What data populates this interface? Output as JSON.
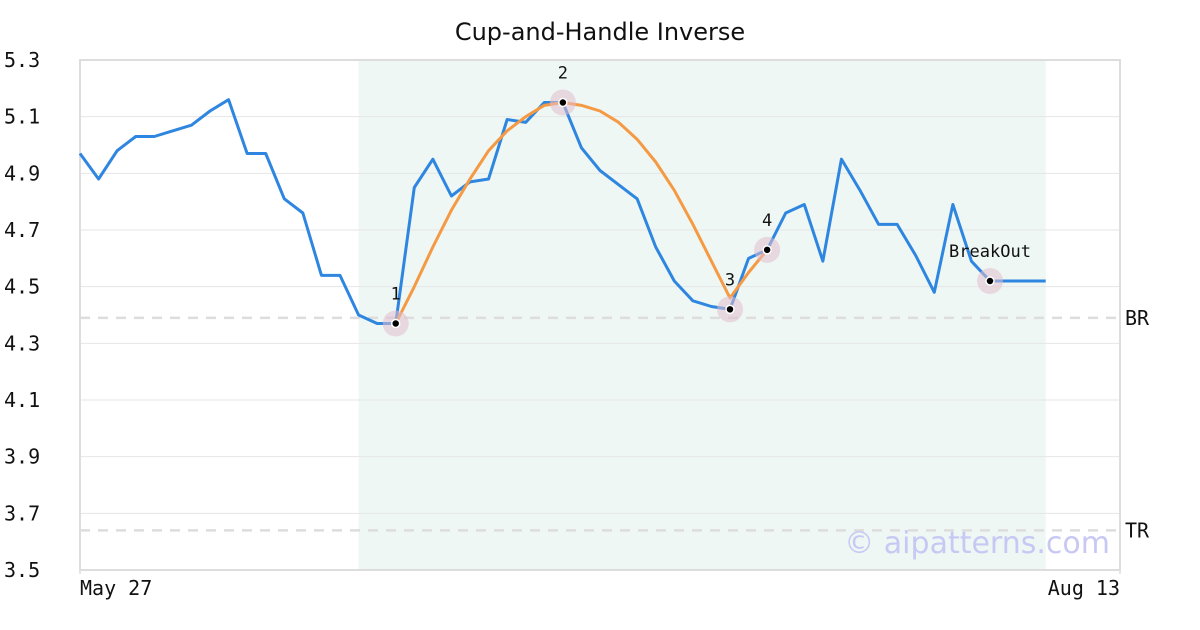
{
  "chart_data": {
    "type": "line",
    "title": "Cup-and-Handle Inverse",
    "xlim": [
      0,
      56
    ],
    "xticks": [
      {
        "value": 0,
        "label": "May 27"
      },
      {
        "value": 56,
        "label": "Aug 13"
      }
    ],
    "ylim": [
      3.5,
      5.3
    ],
    "yticks": [
      3.5,
      3.7,
      3.9,
      4.1,
      4.3,
      4.5,
      4.7,
      4.9,
      5.1,
      5.3
    ],
    "grid": true,
    "series": [
      {
        "color": "#2f86e0",
        "values": [
          4.97,
          4.88,
          4.98,
          5.03,
          5.03,
          5.05,
          5.07,
          5.12,
          5.16,
          4.97,
          4.97,
          4.81,
          4.76,
          4.54,
          4.54,
          4.4,
          4.37,
          4.37,
          4.85,
          4.95,
          4.82,
          4.87,
          4.88,
          5.09,
          5.08,
          5.15,
          5.15,
          4.99,
          4.91,
          4.86,
          4.81,
          4.64,
          4.52,
          4.45,
          4.43,
          4.42,
          4.6,
          4.63,
          4.76,
          4.79,
          4.59,
          4.95,
          4.84,
          4.72,
          4.72,
          4.61,
          4.48,
          4.79,
          4.59,
          4.52,
          4.52,
          4.52,
          4.52
        ]
      },
      {
        "color": "#f59a44",
        "values": [
          null,
          null,
          null,
          null,
          null,
          null,
          null,
          null,
          null,
          null,
          null,
          null,
          null,
          null,
          null,
          null,
          null,
          4.37,
          4.5,
          4.64,
          4.77,
          4.88,
          4.98,
          5.05,
          5.1,
          5.14,
          5.15,
          5.14,
          5.12,
          5.08,
          5.02,
          4.94,
          4.84,
          4.72,
          4.59,
          4.46,
          4.55,
          4.63,
          null,
          null,
          null,
          null,
          null,
          null,
          null,
          null,
          null,
          null,
          null,
          null,
          null,
          null,
          null
        ]
      }
    ],
    "shade": [
      15,
      52
    ],
    "levels": [
      {
        "label": "BR",
        "value": 4.39
      },
      {
        "label": "TR",
        "value": 3.64
      }
    ],
    "points": [
      {
        "label": "1",
        "index": 17,
        "value": 4.37
      },
      {
        "label": "2",
        "index": 26,
        "value": 5.15
      },
      {
        "label": "3",
        "index": 35,
        "value": 4.42
      },
      {
        "label": "4",
        "index": 37,
        "value": 4.63
      },
      {
        "label": "BreakOut",
        "index": 49,
        "value": 4.52
      }
    ],
    "watermark": "© aipatterns.com"
  }
}
